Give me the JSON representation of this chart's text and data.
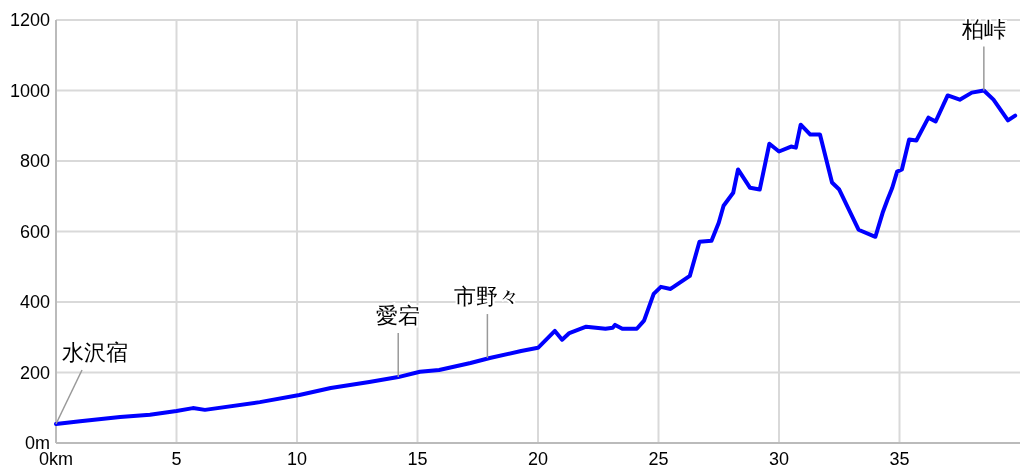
{
  "chart_data": {
    "type": "line",
    "xlim": [
      0,
      40
    ],
    "ylim": [
      0,
      1200
    ],
    "xticks": [
      {
        "value": 0,
        "label": "0km"
      },
      5,
      10,
      15,
      20,
      25,
      30,
      35
    ],
    "yticks": [
      {
        "value": 0,
        "label": "0m"
      },
      200,
      400,
      600,
      800,
      1000,
      1200
    ],
    "grid": true,
    "marker": "none",
    "line_style": "solid",
    "annotations": [
      {
        "text": "水沢宿",
        "x": 0,
        "y": 54
      },
      {
        "text": "愛宕",
        "x": 14.2,
        "y": 187
      },
      {
        "text": "市野々",
        "x": 17.9,
        "y": 241
      },
      {
        "text": "柏峠",
        "x": 38.5,
        "y": 1000
      }
    ],
    "series": [
      {
        "color": "#0000ff",
        "x": [
          0,
          1.0,
          2.66,
          3.9,
          5,
          5.68,
          6.18,
          8.46,
          10.1,
          11.4,
          13.0,
          14.2,
          15.1,
          15.9,
          17.2,
          18.0,
          19.3,
          20.0,
          20.7,
          21.0,
          21.3,
          22.0,
          22.8,
          23.1,
          23.2,
          23.5,
          24.1,
          24.4,
          24.8,
          25.1,
          25.5,
          26.3,
          26.7,
          27.2,
          27.5,
          27.7,
          28.1,
          28.3,
          28.8,
          29.2,
          29.6,
          30.0,
          30.5,
          30.7,
          30.9,
          31.3,
          31.7,
          32.2,
          32.5,
          33.3,
          34.0,
          34.3,
          34.5,
          34.7,
          34.9,
          35.1,
          35.4,
          35.7,
          36.2,
          36.5,
          37.0,
          37.5,
          38.0,
          38.5,
          38.9,
          39.5,
          39.8
        ],
        "values": [
          54,
          62,
          74,
          80,
          91,
          99,
          94,
          116,
          136,
          156,
          173,
          187,
          202,
          207,
          227,
          241,
          261,
          270,
          318,
          293,
          312,
          330,
          324,
          327,
          335,
          324,
          324,
          347,
          423,
          443,
          437,
          474,
          571,
          574,
          625,
          673,
          710,
          776,
          724,
          719,
          849,
          827,
          841,
          838,
          903,
          875,
          875,
          739,
          719,
          605,
          585,
          653,
          690,
          724,
          770,
          776,
          861,
          858,
          923,
          912,
          986,
          974,
          994,
          1000,
          974,
          915,
          929
        ]
      }
    ]
  }
}
